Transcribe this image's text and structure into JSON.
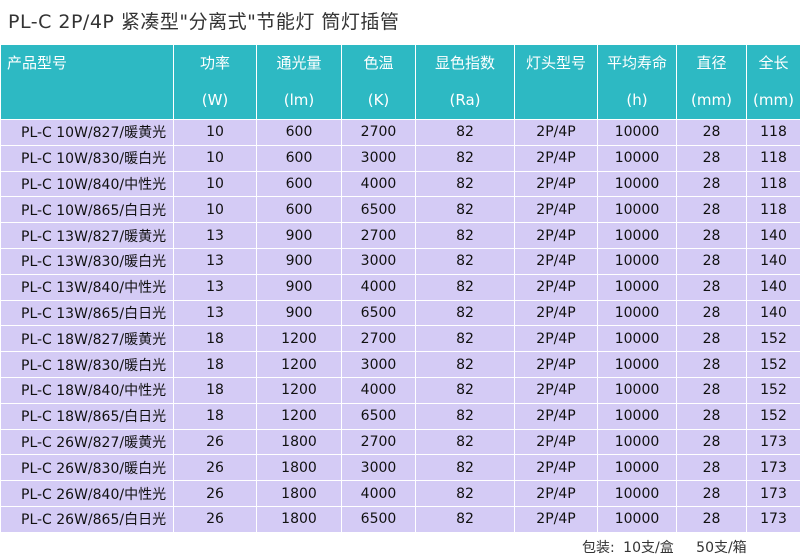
{
  "title": "PL-C 2P/4P 紧凑型\"分离式\"节能灯 筒灯插管",
  "headers": [
    {
      "label": "产品型号",
      "unit": ""
    },
    {
      "label": "功率",
      "unit": "(W)"
    },
    {
      "label": "通光量",
      "unit": "(lm)"
    },
    {
      "label": "色温",
      "unit": "(K)"
    },
    {
      "label": "显色指数",
      "unit": "(Ra)"
    },
    {
      "label": "灯头型号",
      "unit": ""
    },
    {
      "label": "平均寿命",
      "unit": "(h)"
    },
    {
      "label": "直径",
      "unit": "(mm)"
    },
    {
      "label": "全长",
      "unit": "(mm)"
    }
  ],
  "rows": [
    [
      "PL-C 10W/827/暖黄光",
      "10",
      "600",
      "2700",
      "82",
      "2P/4P",
      "10000",
      "28",
      "118"
    ],
    [
      "PL-C 10W/830/暖白光",
      "10",
      "600",
      "3000",
      "82",
      "2P/4P",
      "10000",
      "28",
      "118"
    ],
    [
      "PL-C 10W/840/中性光",
      "10",
      "600",
      "4000",
      "82",
      "2P/4P",
      "10000",
      "28",
      "118"
    ],
    [
      "PL-C 10W/865/白日光",
      "10",
      "600",
      "6500",
      "82",
      "2P/4P",
      "10000",
      "28",
      "118"
    ],
    [
      "PL-C 13W/827/暖黄光",
      "13",
      "900",
      "2700",
      "82",
      "2P/4P",
      "10000",
      "28",
      "140"
    ],
    [
      "PL-C 13W/830/暖白光",
      "13",
      "900",
      "3000",
      "82",
      "2P/4P",
      "10000",
      "28",
      "140"
    ],
    [
      "PL-C 13W/840/中性光",
      "13",
      "900",
      "4000",
      "82",
      "2P/4P",
      "10000",
      "28",
      "140"
    ],
    [
      "PL-C 13W/865/白日光",
      "13",
      "900",
      "6500",
      "82",
      "2P/4P",
      "10000",
      "28",
      "140"
    ],
    [
      "PL-C 18W/827/暖黄光",
      "18",
      "1200",
      "2700",
      "82",
      "2P/4P",
      "10000",
      "28",
      "152"
    ],
    [
      "PL-C 18W/830/暖白光",
      "18",
      "1200",
      "3000",
      "82",
      "2P/4P",
      "10000",
      "28",
      "152"
    ],
    [
      "PL-C 18W/840/中性光",
      "18",
      "1200",
      "4000",
      "82",
      "2P/4P",
      "10000",
      "28",
      "152"
    ],
    [
      "PL-C 18W/865/白日光",
      "18",
      "1200",
      "6500",
      "82",
      "2P/4P",
      "10000",
      "28",
      "152"
    ],
    [
      "PL-C 26W/827/暖黄光",
      "26",
      "1800",
      "2700",
      "82",
      "2P/4P",
      "10000",
      "28",
      "173"
    ],
    [
      "PL-C 26W/830/暖白光",
      "26",
      "1800",
      "3000",
      "82",
      "2P/4P",
      "10000",
      "28",
      "173"
    ],
    [
      "PL-C 26W/840/中性光",
      "26",
      "1800",
      "4000",
      "82",
      "2P/4P",
      "10000",
      "28",
      "173"
    ],
    [
      "PL-C 26W/865/白日光",
      "26",
      "1800",
      "6500",
      "82",
      "2P/4P",
      "10000",
      "28",
      "173"
    ]
  ],
  "footer": {
    "label": "包装:",
    "box": "10支/盒",
    "carton": "50支/箱"
  },
  "colors": {
    "header_bg": "#2db9c3",
    "row_bg": "#d4cbf5"
  }
}
